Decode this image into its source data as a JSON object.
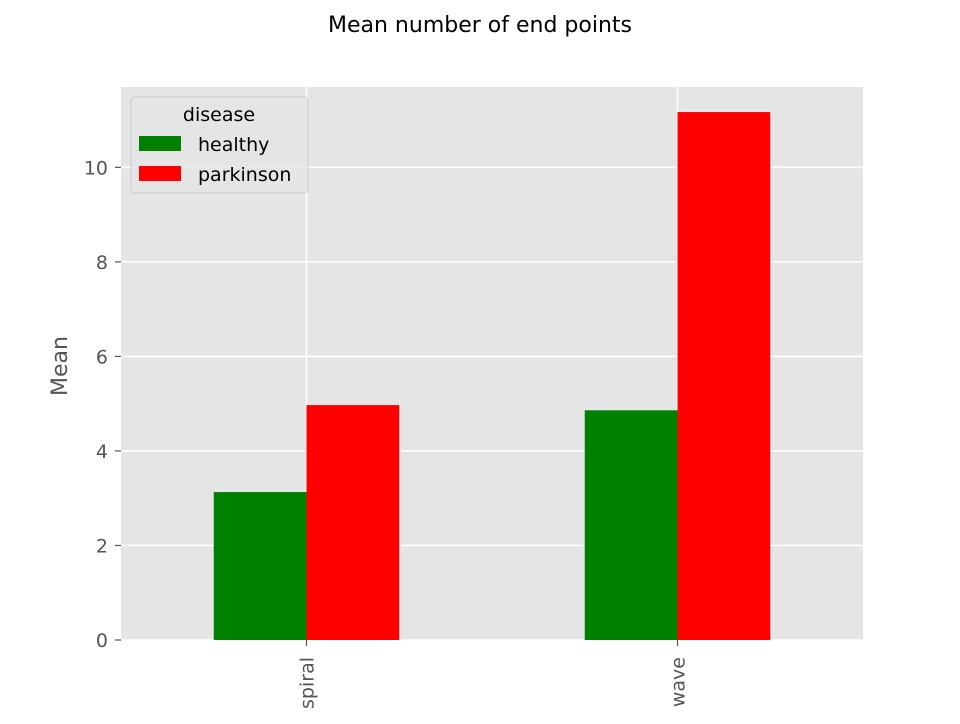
{
  "chart_data": {
    "type": "bar",
    "title": "Mean number of end points",
    "xlabel": "",
    "ylabel": "Mean",
    "categories": [
      "spiral",
      "wave"
    ],
    "series": [
      {
        "name": "healthy",
        "values": [
          3.13,
          4.86
        ],
        "color": "#008000"
      },
      {
        "name": "parkinson",
        "values": [
          4.97,
          11.17
        ],
        "color": "#ff0000"
      }
    ],
    "ylim": [
      0,
      11.7
    ],
    "yticks": [
      0,
      2,
      4,
      6,
      8,
      10
    ],
    "grid": true,
    "legend": {
      "title": "disease",
      "placement": "top-left"
    },
    "style": {
      "plot_background": "#e5e5e5",
      "grid_color": "#ffffff",
      "tick_label_color": "#555555",
      "title_color": "#000000"
    }
  }
}
